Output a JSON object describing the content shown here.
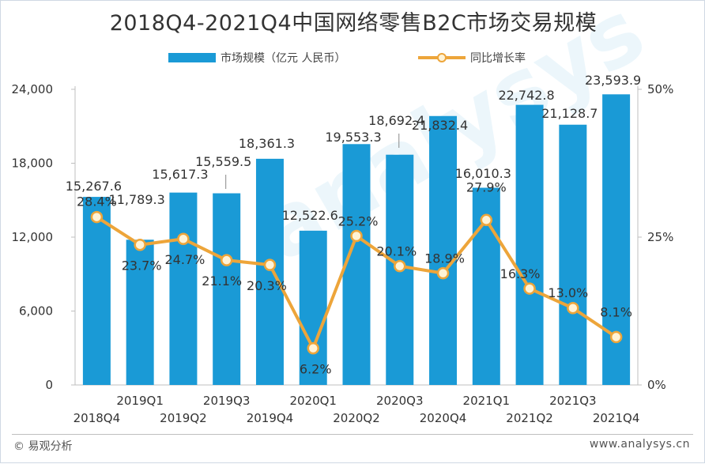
{
  "title": "2018Q4-2021Q4中国网络零售B2C市场交易规模",
  "legend": {
    "bar_label": "市场规模（亿元 人民币）",
    "line_label": "同比增长率"
  },
  "footer": {
    "source": "© 易观分析",
    "url": "www.analysys.cn"
  },
  "watermark": "analysys",
  "colors": {
    "bar": "#1a9ad6",
    "line": "#eda53a",
    "marker_fill": "#fff3d6",
    "text": "#333333"
  },
  "chart_data": {
    "type": "bar",
    "title": "2018Q4-2021Q4中国网络零售B2C市场交易规模",
    "categories": [
      "2018Q4",
      "2019Q1",
      "2019Q2",
      "2019Q3",
      "2019Q4",
      "2020Q1",
      "2020Q2",
      "2020Q3",
      "2020Q4",
      "2021Q1",
      "2021Q2",
      "2021Q3",
      "2021Q4"
    ],
    "series": [
      {
        "name": "市场规模（亿元 人民币）",
        "type": "bar",
        "axis": "left",
        "values": [
          15267.6,
          11789.3,
          15617.3,
          15559.5,
          18361.3,
          12522.6,
          19553.3,
          18692.4,
          21832.4,
          16010.3,
          22742.8,
          21128.7,
          23593.9
        ],
        "labels": [
          "15,267.6",
          "11,789.3",
          "15,617.3",
          "15,559.5",
          "18,361.3",
          "12,522.6",
          "19,553.3",
          "18,692.4",
          "21,832.4",
          "16,010.3",
          "22,742.8",
          "21,128.7",
          "23,593.9"
        ]
      },
      {
        "name": "同比增长率",
        "type": "line",
        "axis": "right",
        "values": [
          28.4,
          23.7,
          24.7,
          21.1,
          20.3,
          6.2,
          25.2,
          20.1,
          18.9,
          27.9,
          16.3,
          13.0,
          8.1
        ],
        "labels": [
          "28.4%",
          "23.7%",
          "24.7%",
          "21.1%",
          "20.3%",
          "6.2%",
          "25.2%",
          "20.1%",
          "18.9%",
          "27.9%",
          "16.3%",
          "13.0%",
          "8.1%"
        ]
      }
    ],
    "y_left": {
      "min": 0,
      "max": 24000,
      "ticks": [
        "0",
        "6,000",
        "12,000",
        "18,000",
        "24,000"
      ],
      "tick_values": [
        0,
        6000,
        12000,
        18000,
        24000
      ]
    },
    "y_right": {
      "min": 0,
      "max": 50,
      "ticks": [
        "0%",
        "25%",
        "50%"
      ],
      "tick_values": [
        0,
        25,
        50
      ]
    },
    "x_label_rows": "staggered",
    "grid": false,
    "legend_position": "top"
  }
}
